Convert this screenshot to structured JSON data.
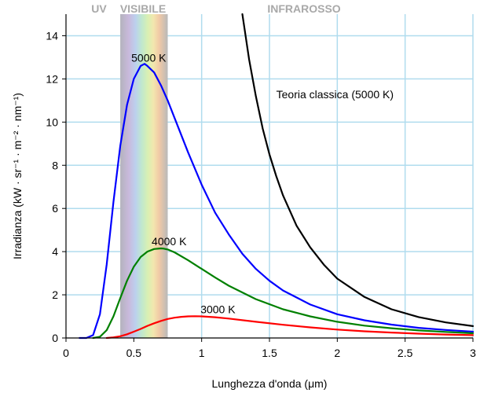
{
  "chart_data": {
    "type": "line",
    "xlabel": "Lunghezza d'onda (μm)",
    "ylabel": "Irradianza (kW · sr⁻¹ · m⁻² · nm⁻¹)",
    "xlim": [
      0,
      3
    ],
    "ylim": [
      0,
      15
    ],
    "x_ticks": [
      0,
      0.5,
      1,
      1.5,
      2,
      2.5,
      3
    ],
    "x_tick_labels": [
      "0",
      "0.5",
      "1",
      "1.5",
      "2",
      "2.5",
      "3"
    ],
    "y_ticks": [
      0,
      2,
      4,
      6,
      8,
      10,
      12,
      14
    ],
    "y_tick_labels": [
      "0",
      "2",
      "4",
      "6",
      "8",
      "10",
      "12",
      "14"
    ],
    "grid": true,
    "regions": [
      {
        "label": "UV",
        "x_from": 0.0,
        "x_to": 0.4
      },
      {
        "label": "VISIBILE",
        "x_from": 0.4,
        "x_to": 0.75
      },
      {
        "label": "INFRAROSSO",
        "x_from": 0.75,
        "x_to": 3.0
      }
    ],
    "visible_band": [
      0.4,
      0.75
    ],
    "series": [
      {
        "name": "5000 K",
        "color": "#0000ff",
        "x": [
          0.1,
          0.15,
          0.2,
          0.25,
          0.3,
          0.35,
          0.4,
          0.45,
          0.5,
          0.55,
          0.58,
          0.6,
          0.65,
          0.7,
          0.75,
          0.8,
          0.9,
          1.0,
          1.1,
          1.2,
          1.3,
          1.4,
          1.5,
          1.6,
          1.8,
          2.0,
          2.2,
          2.4,
          2.6,
          2.8,
          3.0
        ],
        "y": [
          0.0,
          0.0,
          0.13,
          1.1,
          3.4,
          6.3,
          8.9,
          10.8,
          12.0,
          12.6,
          12.7,
          12.6,
          12.3,
          11.7,
          11.0,
          10.2,
          8.6,
          7.1,
          5.8,
          4.8,
          3.9,
          3.2,
          2.65,
          2.2,
          1.55,
          1.1,
          0.82,
          0.62,
          0.47,
          0.37,
          0.29
        ]
      },
      {
        "name": "4000 K",
        "color": "#008000",
        "x": [
          0.2,
          0.25,
          0.3,
          0.35,
          0.4,
          0.45,
          0.5,
          0.55,
          0.6,
          0.65,
          0.7,
          0.72,
          0.75,
          0.8,
          0.9,
          1.0,
          1.1,
          1.2,
          1.4,
          1.6,
          1.8,
          2.0,
          2.2,
          2.4,
          2.6,
          2.8,
          3.0
        ],
        "y": [
          0.0,
          0.06,
          0.36,
          1.0,
          1.85,
          2.65,
          3.3,
          3.75,
          4.0,
          4.12,
          4.15,
          4.14,
          4.1,
          3.97,
          3.6,
          3.2,
          2.8,
          2.42,
          1.8,
          1.33,
          1.0,
          0.75,
          0.57,
          0.45,
          0.35,
          0.28,
          0.22
        ]
      },
      {
        "name": "3000 K",
        "color": "#ff0000",
        "x": [
          0.3,
          0.35,
          0.4,
          0.45,
          0.5,
          0.55,
          0.6,
          0.65,
          0.7,
          0.75,
          0.8,
          0.85,
          0.9,
          0.95,
          1.0,
          1.1,
          1.2,
          1.4,
          1.6,
          1.8,
          2.0,
          2.2,
          2.4,
          2.6,
          2.8,
          3.0
        ],
        "y": [
          0.0,
          0.03,
          0.08,
          0.17,
          0.29,
          0.42,
          0.56,
          0.68,
          0.79,
          0.88,
          0.94,
          0.98,
          1.0,
          1.01,
          1.0,
          0.96,
          0.9,
          0.75,
          0.61,
          0.49,
          0.39,
          0.31,
          0.25,
          0.2,
          0.16,
          0.13
        ]
      },
      {
        "name": "Teoria classica (5000 K)",
        "color": "#000000",
        "x": [
          1.3,
          1.35,
          1.4,
          1.45,
          1.5,
          1.55,
          1.6,
          1.7,
          1.8,
          1.9,
          2.0,
          2.2,
          2.4,
          2.6,
          2.8,
          3.0
        ],
        "y": [
          15.0,
          12.9,
          11.2,
          9.7,
          8.5,
          7.5,
          6.6,
          5.2,
          4.2,
          3.4,
          2.75,
          1.9,
          1.33,
          0.97,
          0.72,
          0.55
        ]
      }
    ],
    "annotations": [
      {
        "text": "5000 K",
        "x": 0.61,
        "y": 12.8
      },
      {
        "text": "4000 K",
        "x": 0.76,
        "y": 4.3
      },
      {
        "text": "3000 K",
        "x": 1.12,
        "y": 1.15
      },
      {
        "text": "Teoria classica (5000 K)",
        "x": 1.55,
        "y": 11.1
      }
    ]
  }
}
